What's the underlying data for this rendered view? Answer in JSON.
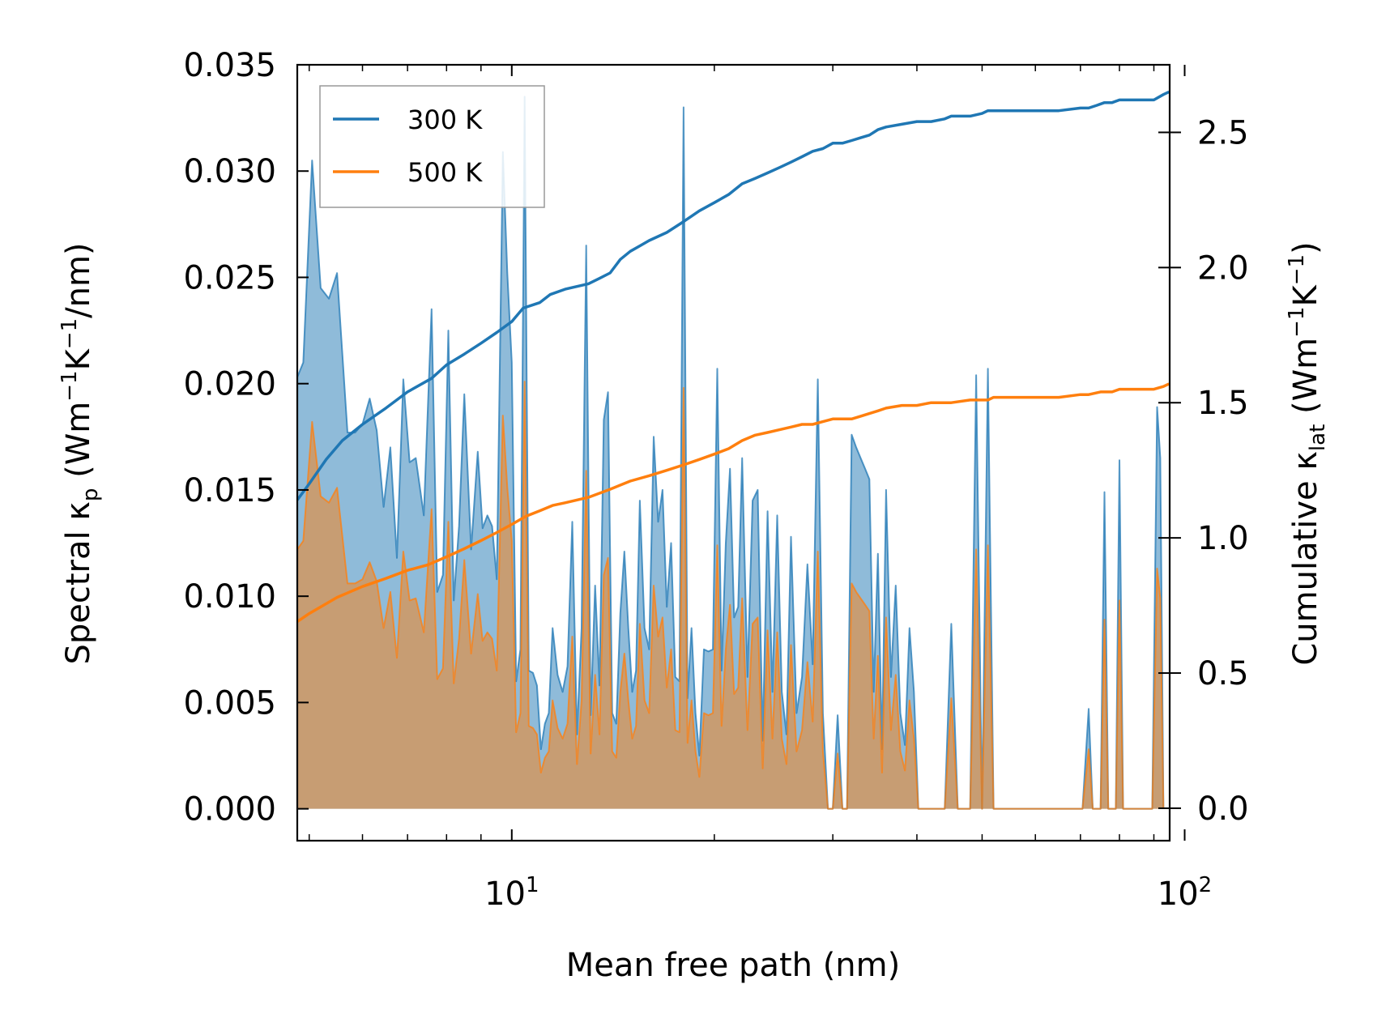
{
  "chart_data": {
    "type": "line",
    "xscale": "log",
    "xlim": [
      4.8,
      95
    ],
    "xlabel": "Mean free path (nm)",
    "x_major_ticks": [
      {
        "value": 10,
        "base": "10",
        "exp": "1"
      },
      {
        "value": 100,
        "base": "10",
        "exp": "2"
      }
    ],
    "x_minor_ticks": [
      5,
      6,
      7,
      8,
      9,
      20,
      30,
      40,
      50,
      60,
      70,
      80,
      90
    ],
    "y_left": {
      "label_parts": [
        "Spectral κ",
        "p",
        " (Wm",
        "−1",
        "K",
        "−1",
        "/nm)"
      ],
      "ylim": [
        -0.0015,
        0.035
      ],
      "ticks": [
        0.0,
        0.005,
        0.01,
        0.015,
        0.02,
        0.025,
        0.03,
        0.035
      ],
      "tick_labels": [
        "0.000",
        "0.005",
        "0.010",
        "0.015",
        "0.020",
        "0.025",
        "0.030",
        "0.035"
      ]
    },
    "y_right": {
      "label_parts": [
        "Cumulative κ",
        "lat",
        " (Wm",
        "−1",
        "K",
        "−1",
        ")"
      ],
      "ylim": [
        -0.12,
        2.75
      ],
      "ticks": [
        0.0,
        0.5,
        1.0,
        1.5,
        2.0,
        2.5
      ],
      "tick_labels": [
        "0.0",
        "0.5",
        "1.0",
        "1.5",
        "2.0",
        "2.5"
      ]
    },
    "legend": {
      "position": "top-left"
    },
    "colors": {
      "300 K": "#1f77b4",
      "500 K": "#ff7f0e"
    },
    "spectral_x": [
      4.8,
      4.9,
      5.05,
      5.2,
      5.35,
      5.5,
      5.7,
      5.85,
      6.0,
      6.15,
      6.3,
      6.45,
      6.6,
      6.75,
      6.9,
      7.05,
      7.2,
      7.4,
      7.6,
      7.75,
      7.9,
      8.05,
      8.2,
      8.35,
      8.5,
      8.7,
      8.9,
      9.05,
      9.2,
      9.35,
      9.5,
      9.7,
      9.85,
      10.0,
      10.15,
      10.3,
      10.45,
      10.6,
      10.75,
      10.9,
      11.05,
      11.2,
      11.35,
      11.5,
      11.7,
      11.9,
      12.1,
      12.3,
      12.5,
      12.7,
      12.9,
      13.1,
      13.3,
      13.5,
      13.7,
      13.9,
      14.1,
      14.3,
      14.5,
      14.7,
      14.9,
      15.1,
      15.3,
      15.5,
      15.75,
      16.0,
      16.25,
      16.5,
      16.75,
      17.0,
      17.25,
      17.5,
      17.75,
      18.0,
      18.25,
      18.5,
      18.75,
      19.0,
      19.3,
      19.6,
      19.9,
      20.2,
      20.5,
      20.8,
      21.1,
      21.4,
      21.7,
      22.0,
      22.4,
      22.8,
      23.2,
      23.6,
      24.0,
      24.4,
      24.8,
      25.2,
      25.6,
      26.0,
      26.5,
      27.0,
      27.5,
      28.0,
      28.5,
      29.0,
      29.5,
      30.0,
      30.5,
      31.0,
      31.5,
      32.0,
      32.5,
      33.0,
      33.5,
      34.0,
      34.5,
      35.0,
      35.5,
      36.0,
      36.6,
      37.2,
      37.8,
      38.4,
      39.0,
      39.6,
      40.2,
      40.8,
      41.4,
      42.0,
      43.0,
      44.0,
      45.0,
      46.0,
      47.0,
      48.0,
      49.0,
      50.0,
      51.0,
      52.0,
      53.0,
      55.0,
      57.0,
      59.0,
      61.0,
      63.0,
      65.0,
      67.0,
      69.0,
      70.5,
      72.0,
      73.0,
      74.0,
      75.0,
      76.0,
      77.0,
      78.0,
      79.0,
      80.0,
      81.0,
      82.0,
      84.0,
      86.0,
      88.0,
      89.5,
      91.0,
      92.0,
      93.0,
      94.0,
      94.8
    ],
    "series": [
      {
        "name": "300 K",
        "spectral": [
          0.0203,
          0.021,
          0.0305,
          0.0245,
          0.024,
          0.0252,
          0.0177,
          0.0177,
          0.0181,
          0.0193,
          0.0178,
          0.0142,
          0.017,
          0.0118,
          0.0202,
          0.0163,
          0.0165,
          0.0138,
          0.0235,
          0.0102,
          0.011,
          0.0225,
          0.0098,
          0.0133,
          0.0195,
          0.0122,
          0.0168,
          0.0132,
          0.0138,
          0.0133,
          0.0108,
          0.0309,
          0.0252,
          0.021,
          0.006,
          0.0075,
          0.0335,
          0.0065,
          0.0064,
          0.0058,
          0.0028,
          0.004,
          0.0045,
          0.0085,
          0.0063,
          0.0055,
          0.0067,
          0.0135,
          0.0035,
          0.0085,
          0.0265,
          0.0044,
          0.0105,
          0.0058,
          0.0183,
          0.0196,
          0.0045,
          0.004,
          0.0092,
          0.0121,
          0.0085,
          0.0055,
          0.0065,
          0.0145,
          0.0085,
          0.0075,
          0.0175,
          0.0135,
          0.015,
          0.0095,
          0.0125,
          0.0062,
          0.006,
          0.033,
          0.0052,
          0.0085,
          0.0045,
          0.0025,
          0.0075,
          0.0074,
          0.0075,
          0.0207,
          0.0065,
          0.0125,
          0.016,
          0.009,
          0.0095,
          0.0165,
          0.0062,
          0.0145,
          0.015,
          0.0032,
          0.014,
          0.0055,
          0.0138,
          0.0055,
          0.0035,
          0.0128,
          0.0045,
          0.0062,
          0.0115,
          0.0068,
          0.0202,
          0.0045,
          0.0,
          0.0,
          0.0044,
          0.0,
          0.0,
          0.0176,
          0.017,
          0.0165,
          0.016,
          0.0155,
          0.0055,
          0.012,
          0.0028,
          0.015,
          0.0062,
          0.0105,
          0.0045,
          0.003,
          0.0085,
          0.0055,
          0.0,
          0.0,
          0.0,
          0.0,
          0.0,
          0.0,
          0.0087,
          0.0,
          0.0,
          0.0,
          0.0204,
          0.0,
          0.0207,
          0.0,
          0.0,
          0.0,
          0.0,
          0.0,
          0.0,
          0.0,
          0.0,
          0.0,
          0.0,
          0.0,
          0.0047,
          0.0,
          0.0,
          0.0,
          0.0149,
          0.0,
          0.0,
          0.0,
          0.0164,
          0.0,
          0.0,
          0.0,
          0.0,
          0.0,
          0.0,
          0.0189,
          0.0165,
          0.0
        ],
        "cumulative_x": [
          4.8,
          5.0,
          5.3,
          5.6,
          6.0,
          6.5,
          7.0,
          7.6,
          8.0,
          8.5,
          9.0,
          9.5,
          10.0,
          10.4,
          11.0,
          11.4,
          12.0,
          13.0,
          13.5,
          14.0,
          14.5,
          15.0,
          15.5,
          16.0,
          17.0,
          18.0,
          18.5,
          19.0,
          20.0,
          21.0,
          22.0,
          23.0,
          24.0,
          25.0,
          26.0,
          27.0,
          28.0,
          29.0,
          30.0,
          31.0,
          32.0,
          33.0,
          34.0,
          35.0,
          36.0,
          38.0,
          40.0,
          42.0,
          44.0,
          45.0,
          48.0,
          50.0,
          51.0,
          52.0,
          55.0,
          60.0,
          65.0,
          70.0,
          72.0,
          74.0,
          76.0,
          78.0,
          80.0,
          82.0,
          86.0,
          90.0,
          93.0,
          94.8
        ],
        "cumulative": [
          1.14,
          1.2,
          1.29,
          1.36,
          1.42,
          1.48,
          1.54,
          1.59,
          1.64,
          1.68,
          1.72,
          1.76,
          1.8,
          1.85,
          1.87,
          1.9,
          1.92,
          1.94,
          1.96,
          1.98,
          2.03,
          2.06,
          2.08,
          2.1,
          2.13,
          2.17,
          2.19,
          2.21,
          2.24,
          2.27,
          2.31,
          2.33,
          2.35,
          2.37,
          2.39,
          2.41,
          2.43,
          2.44,
          2.46,
          2.46,
          2.47,
          2.48,
          2.49,
          2.51,
          2.52,
          2.53,
          2.54,
          2.54,
          2.55,
          2.56,
          2.56,
          2.57,
          2.58,
          2.58,
          2.58,
          2.58,
          2.58,
          2.59,
          2.59,
          2.6,
          2.61,
          2.61,
          2.62,
          2.62,
          2.62,
          2.62,
          2.64,
          2.65
        ]
      },
      {
        "name": "500 K",
        "spectral": [
          0.0122,
          0.0126,
          0.0182,
          0.0147,
          0.0144,
          0.0151,
          0.0106,
          0.0106,
          0.0108,
          0.0116,
          0.0107,
          0.0085,
          0.0102,
          0.0071,
          0.0121,
          0.0098,
          0.0099,
          0.0083,
          0.0141,
          0.0061,
          0.0066,
          0.0135,
          0.0059,
          0.008,
          0.0117,
          0.0073,
          0.0101,
          0.0079,
          0.0083,
          0.008,
          0.0065,
          0.0185,
          0.0151,
          0.0126,
          0.0036,
          0.0045,
          0.0201,
          0.0039,
          0.0038,
          0.0035,
          0.0017,
          0.0024,
          0.0027,
          0.0051,
          0.0038,
          0.0033,
          0.004,
          0.0081,
          0.0021,
          0.0051,
          0.0159,
          0.0026,
          0.0063,
          0.0035,
          0.011,
          0.0118,
          0.0027,
          0.0024,
          0.0055,
          0.0073,
          0.0051,
          0.0033,
          0.0039,
          0.0087,
          0.0051,
          0.0045,
          0.0105,
          0.0081,
          0.009,
          0.0057,
          0.0075,
          0.0037,
          0.0036,
          0.0198,
          0.0031,
          0.0051,
          0.0027,
          0.0015,
          0.0045,
          0.0044,
          0.0045,
          0.0124,
          0.0039,
          0.0075,
          0.0096,
          0.0054,
          0.0057,
          0.0099,
          0.0037,
          0.0087,
          0.009,
          0.0019,
          0.0084,
          0.0033,
          0.0083,
          0.0033,
          0.0021,
          0.0077,
          0.0027,
          0.0037,
          0.0069,
          0.0041,
          0.0121,
          0.0027,
          0.0,
          0.0,
          0.0026,
          0.0,
          0.0,
          0.0106,
          0.0102,
          0.0099,
          0.0096,
          0.0093,
          0.0033,
          0.0072,
          0.0017,
          0.009,
          0.0037,
          0.0063,
          0.0027,
          0.0018,
          0.0051,
          0.0033,
          0.0,
          0.0,
          0.0,
          0.0,
          0.0,
          0.0,
          0.0052,
          0.0,
          0.0,
          0.0,
          0.0122,
          0.0,
          0.0124,
          0.0,
          0.0,
          0.0,
          0.0,
          0.0,
          0.0,
          0.0,
          0.0,
          0.0,
          0.0,
          0.0,
          0.0028,
          0.0,
          0.0,
          0.0,
          0.0089,
          0.0,
          0.0,
          0.0,
          0.0098,
          0.0,
          0.0,
          0.0,
          0.0,
          0.0,
          0.0,
          0.0113,
          0.0099,
          0.0
        ],
        "cumulative_x": [
          4.8,
          5.0,
          5.5,
          6.0,
          6.5,
          7.0,
          7.5,
          8.0,
          8.5,
          9.0,
          9.5,
          10.0,
          10.5,
          11.0,
          11.5,
          12.0,
          13.0,
          14.0,
          15.0,
          16.0,
          17.0,
          18.0,
          19.0,
          20.0,
          21.0,
          22.0,
          23.0,
          24.0,
          25.0,
          26.0,
          27.0,
          28.0,
          29.0,
          30.0,
          32.0,
          33.0,
          34.0,
          35.0,
          36.0,
          38.0,
          40.0,
          42.0,
          45.0,
          48.0,
          51.0,
          52.0,
          55.0,
          60.0,
          65.0,
          70.0,
          72.0,
          75.0,
          78.0,
          80.0,
          85.0,
          90.0,
          93.0,
          94.8
        ],
        "cumulative": [
          0.69,
          0.72,
          0.78,
          0.82,
          0.85,
          0.88,
          0.9,
          0.93,
          0.96,
          0.99,
          1.02,
          1.05,
          1.08,
          1.1,
          1.12,
          1.13,
          1.15,
          1.18,
          1.21,
          1.23,
          1.25,
          1.27,
          1.29,
          1.31,
          1.33,
          1.36,
          1.38,
          1.39,
          1.4,
          1.41,
          1.42,
          1.42,
          1.43,
          1.44,
          1.44,
          1.45,
          1.46,
          1.47,
          1.48,
          1.49,
          1.49,
          1.5,
          1.5,
          1.51,
          1.51,
          1.52,
          1.52,
          1.52,
          1.52,
          1.53,
          1.53,
          1.54,
          1.54,
          1.55,
          1.55,
          1.55,
          1.56,
          1.57
        ]
      }
    ]
  }
}
